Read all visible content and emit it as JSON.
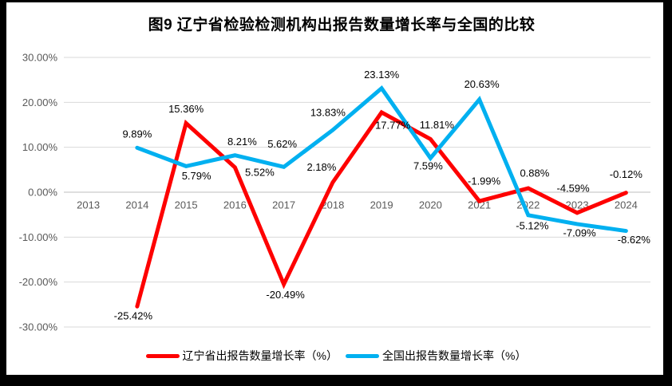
{
  "title": "图9  辽宁省检验检测机构出报告数量增长率与全国的比较",
  "chart_data": {
    "type": "line",
    "title": "图9  辽宁省检验检测机构出报告数量增长率与全国的比较",
    "categories": [
      "2013",
      "2014",
      "2015",
      "2016",
      "2017",
      "2018",
      "2019",
      "2020",
      "2021",
      "2022",
      "2023",
      "2024"
    ],
    "series": [
      {
        "name": "辽宁省出报告数量增长率（%）",
        "color": "#FE0000",
        "values": [
          null,
          -25.42,
          15.36,
          5.52,
          -20.49,
          2.18,
          17.77,
          11.81,
          -1.99,
          0.88,
          -4.59,
          -0.12
        ],
        "data_labels": [
          null,
          "-25.42%",
          "15.36%",
          "5.52%",
          "-20.49%",
          "2.18%",
          "17.77%",
          "11.81%",
          "-1.99%",
          "0.88%",
          "-4.59%",
          "-0.12%"
        ]
      },
      {
        "name": "全国出报告数量增长率（%）",
        "color": "#00B0F0",
        "values": [
          null,
          9.89,
          5.79,
          8.21,
          5.62,
          13.83,
          23.13,
          7.59,
          20.63,
          -5.12,
          -7.09,
          -8.62
        ],
        "data_labels": [
          null,
          "9.89%",
          "5.79%",
          "8.21%",
          "5.62%",
          "13.83%",
          "23.13%",
          "7.59%",
          "20.63%",
          "-5.12%",
          "-7.09%",
          "-8.62%"
        ]
      }
    ],
    "ylim": [
      -30,
      30
    ],
    "y_ticks": [
      {
        "value": 30,
        "label": "30.00%"
      },
      {
        "value": 20,
        "label": "20.00%"
      },
      {
        "value": 10,
        "label": "10.00%"
      },
      {
        "value": 0,
        "label": "0.00%"
      },
      {
        "value": -10,
        "label": "-10.00%"
      },
      {
        "value": -20,
        "label": "-20.00%"
      },
      {
        "value": -30,
        "label": "-30.00%"
      }
    ],
    "grid": true,
    "legend_position": "bottom",
    "colors": {
      "gridline": "#D9D9D9",
      "axis_line": "#BFBFBF",
      "axis_text": "#595959",
      "data_label_text": "#000000",
      "background": "#FFFFFF",
      "frame": "#000000"
    }
  }
}
